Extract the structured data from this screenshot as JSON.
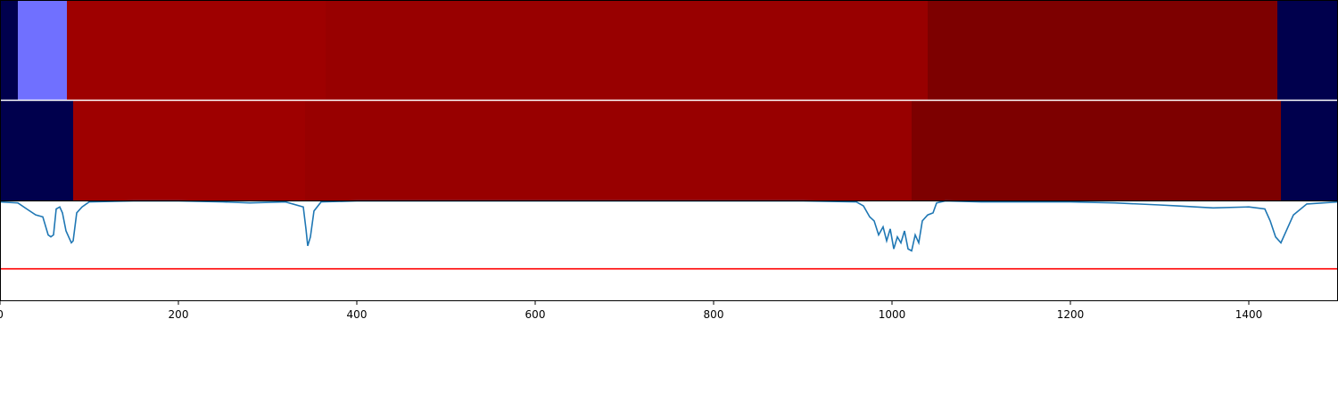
{
  "chart_data": {
    "type": "heatmap",
    "xlim": [
      0,
      1500
    ],
    "x_ticks": [
      "0",
      "200",
      "400",
      "600",
      "800",
      "1000",
      "1200",
      "1400"
    ],
    "x_tick_values": [
      0,
      200,
      400,
      600,
      800,
      1000,
      1200,
      1400
    ],
    "segment_tracks": [
      {
        "segments": [
          {
            "start": 0,
            "end": 20,
            "color": "#00004d"
          },
          {
            "start": 20,
            "end": 75,
            "color": "#7070ff"
          },
          {
            "start": 75,
            "end": 365,
            "color": "#9e0000"
          },
          {
            "start": 365,
            "end": 1040,
            "color": "#980000"
          },
          {
            "start": 1040,
            "end": 1432,
            "color": "#7d0000"
          },
          {
            "start": 1432,
            "end": 1500,
            "color": "#00004d"
          }
        ]
      },
      {
        "segments": [
          {
            "start": 0,
            "end": 82,
            "color": "#00004d"
          },
          {
            "start": 82,
            "end": 342,
            "color": "#9e0000"
          },
          {
            "start": 342,
            "end": 1022,
            "color": "#980000"
          },
          {
            "start": 1022,
            "end": 1436,
            "color": "#7d0000"
          },
          {
            "start": 1436,
            "end": 1500,
            "color": "#00004d"
          }
        ]
      }
    ],
    "line_panel": {
      "ylim": [
        0,
        1
      ],
      "threshold": 0.32,
      "threshold_color": "#ff0000",
      "line_color": "#1f77b4",
      "points": [
        [
          0,
          0.99
        ],
        [
          20,
          0.98
        ],
        [
          30,
          0.92
        ],
        [
          40,
          0.86
        ],
        [
          48,
          0.84
        ],
        [
          54,
          0.66
        ],
        [
          57,
          0.64
        ],
        [
          60,
          0.66
        ],
        [
          63,
          0.92
        ],
        [
          67,
          0.94
        ],
        [
          70,
          0.88
        ],
        [
          74,
          0.7
        ],
        [
          78,
          0.62
        ],
        [
          80,
          0.58
        ],
        [
          82,
          0.6
        ],
        [
          86,
          0.88
        ],
        [
          92,
          0.94
        ],
        [
          100,
          0.99
        ],
        [
          150,
          1.0
        ],
        [
          200,
          1.0
        ],
        [
          250,
          0.99
        ],
        [
          280,
          0.98
        ],
        [
          320,
          0.99
        ],
        [
          340,
          0.94
        ],
        [
          343,
          0.72
        ],
        [
          345,
          0.55
        ],
        [
          348,
          0.64
        ],
        [
          352,
          0.9
        ],
        [
          360,
          0.99
        ],
        [
          400,
          1.0
        ],
        [
          500,
          1.0
        ],
        [
          600,
          1.0
        ],
        [
          700,
          1.0
        ],
        [
          800,
          1.0
        ],
        [
          900,
          1.0
        ],
        [
          960,
          0.99
        ],
        [
          968,
          0.95
        ],
        [
          975,
          0.84
        ],
        [
          980,
          0.8
        ],
        [
          985,
          0.66
        ],
        [
          990,
          0.74
        ],
        [
          994,
          0.6
        ],
        [
          998,
          0.72
        ],
        [
          1002,
          0.52
        ],
        [
          1006,
          0.64
        ],
        [
          1010,
          0.58
        ],
        [
          1014,
          0.7
        ],
        [
          1018,
          0.52
        ],
        [
          1022,
          0.5
        ],
        [
          1026,
          0.66
        ],
        [
          1030,
          0.58
        ],
        [
          1034,
          0.8
        ],
        [
          1040,
          0.86
        ],
        [
          1046,
          0.88
        ],
        [
          1050,
          0.98
        ],
        [
          1060,
          1.0
        ],
        [
          1100,
          0.99
        ],
        [
          1200,
          0.99
        ],
        [
          1250,
          0.98
        ],
        [
          1300,
          0.96
        ],
        [
          1320,
          0.95
        ],
        [
          1360,
          0.93
        ],
        [
          1400,
          0.94
        ],
        [
          1418,
          0.92
        ],
        [
          1424,
          0.8
        ],
        [
          1430,
          0.64
        ],
        [
          1436,
          0.58
        ],
        [
          1442,
          0.7
        ],
        [
          1450,
          0.86
        ],
        [
          1465,
          0.97
        ],
        [
          1500,
          0.99
        ]
      ]
    }
  }
}
